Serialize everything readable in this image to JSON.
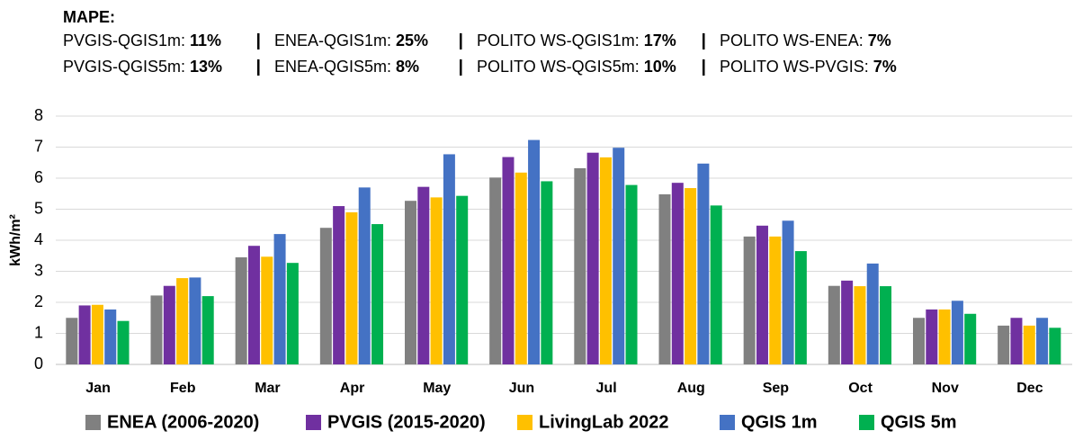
{
  "chart_data": {
    "type": "bar",
    "annotations": {
      "title": "MAPE:",
      "rows": [
        [
          {
            "label": "PVGIS-QGIS1m:",
            "value": "11%"
          },
          {
            "label": "ENEA-QGIS1m:",
            "value": "25%"
          },
          {
            "label": "POLITO WS-QGIS1m:",
            "value": "17%"
          },
          {
            "label": "POLITO WS-ENEA:",
            "value": "7%"
          }
        ],
        [
          {
            "label": "PVGIS-QGIS5m:",
            "value": "13%"
          },
          {
            "label": "ENEA-QGIS5m:",
            "value": "8%"
          },
          {
            "label": "POLITO WS-QGIS5m:",
            "value": "10%"
          },
          {
            "label": "POLITO WS-PVGIS:",
            "value": "7%"
          }
        ]
      ]
    },
    "ylabel": "kWh/m²",
    "categories": [
      "Jan",
      "Feb",
      "Mar",
      "Apr",
      "May",
      "Jun",
      "Jul",
      "Aug",
      "Sep",
      "Oct",
      "Nov",
      "Dec"
    ],
    "series": [
      {
        "name": "ENEA (2006-2020)",
        "color": "#808080",
        "values": [
          1.5,
          2.22,
          3.45,
          4.4,
          5.27,
          6.02,
          6.32,
          5.48,
          4.12,
          2.53,
          1.5,
          1.25
        ]
      },
      {
        "name": "PVGIS (2015-2020)",
        "color": "#7030a0",
        "values": [
          1.9,
          2.53,
          3.82,
          5.1,
          5.72,
          6.68,
          6.82,
          5.85,
          4.47,
          2.7,
          1.77,
          1.5
        ]
      },
      {
        "name": "LivingLab 2022",
        "color": "#ffc000",
        "values": [
          1.92,
          2.78,
          3.47,
          4.9,
          5.38,
          6.18,
          6.67,
          5.68,
          4.12,
          2.52,
          1.77,
          1.25
        ]
      },
      {
        "name": "QGIS 1m",
        "color": "#4472c4",
        "values": [
          1.77,
          2.8,
          4.2,
          5.7,
          6.77,
          7.23,
          6.98,
          6.47,
          4.63,
          3.25,
          2.05,
          1.5
        ]
      },
      {
        "name": "QGIS 5m",
        "color": "#00b050",
        "values": [
          1.4,
          2.2,
          3.27,
          4.52,
          5.43,
          5.9,
          5.78,
          5.12,
          3.65,
          2.52,
          1.63,
          1.18
        ]
      }
    ],
    "ylim": [
      0,
      8
    ],
    "yticks": [
      0,
      1,
      2,
      3,
      4,
      5,
      6,
      7,
      8
    ],
    "grid": true
  }
}
